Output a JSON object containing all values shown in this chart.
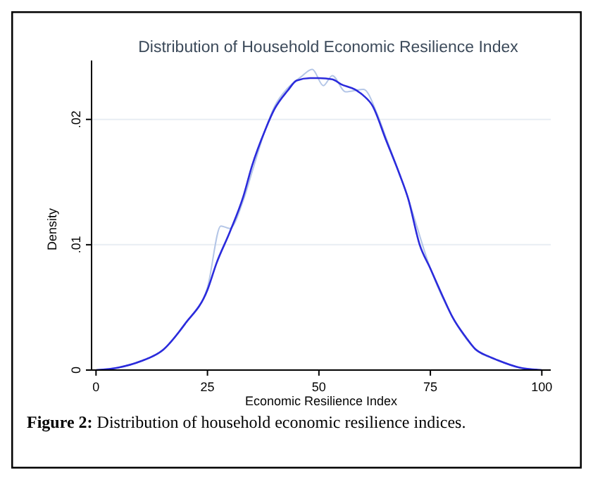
{
  "chart_data": {
    "type": "line",
    "title": "Distribution of Household Economic Resilience Index",
    "xlabel": "Economic Resilience Index",
    "ylabel": "Density",
    "annotations": [
      "Figure 2: Distribution of household economic resilience indices."
    ],
    "xlim": [
      -1,
      102
    ],
    "xticks": [
      0,
      25,
      50,
      75,
      100
    ],
    "ylim": [
      0,
      0.0247
    ],
    "yticks": [
      {
        "value": 0,
        "label": "0"
      },
      {
        "value": 0.01,
        "label": ".01"
      },
      {
        "value": 0.02,
        "label": ".02"
      }
    ],
    "grid": "y",
    "marker": "none",
    "line_style": "solid",
    "series": [
      {
        "color": "#b4c6e7",
        "x": [
          0,
          5,
          10,
          15,
          20,
          25,
          28,
          30,
          33,
          35,
          38,
          40,
          43,
          46,
          48.5,
          51,
          53,
          56,
          60,
          63,
          65,
          70,
          75,
          80,
          85,
          90,
          95,
          100
        ],
        "values": [
          0,
          0.0002,
          0.0007,
          0.0016,
          0.0037,
          0.0066,
          0.0115,
          0.0113,
          0.0135,
          0.0158,
          0.0192,
          0.021,
          0.0225,
          0.0234,
          0.024,
          0.0227,
          0.0235,
          0.0222,
          0.0224,
          0.0205,
          0.0186,
          0.0137,
          0.0081,
          0.0042,
          0.0017,
          0.0008,
          0.0002,
          0
        ]
      },
      {
        "color": "#2b2bdc",
        "x": [
          0,
          5,
          10,
          15,
          20,
          25,
          27,
          30,
          33,
          35,
          38,
          40,
          43,
          45,
          48,
          50,
          53,
          55,
          58,
          60,
          62,
          65,
          68,
          70,
          72.6,
          75,
          78,
          80,
          83,
          85,
          88,
          90,
          95,
          100
        ],
        "values": [
          0,
          0.0002,
          0.0007,
          0.0016,
          0.0037,
          0.0064,
          0.0085,
          0.011,
          0.0138,
          0.0163,
          0.0192,
          0.0208,
          0.0223,
          0.0231,
          0.0233,
          0.0233,
          0.0232,
          0.0228,
          0.0224,
          0.0219,
          0.0211,
          0.0184,
          0.0157,
          0.0137,
          0.01,
          0.0081,
          0.0057,
          0.0042,
          0.0026,
          0.0017,
          0.0011,
          0.0008,
          0.0002,
          0
        ]
      }
    ]
  }
}
